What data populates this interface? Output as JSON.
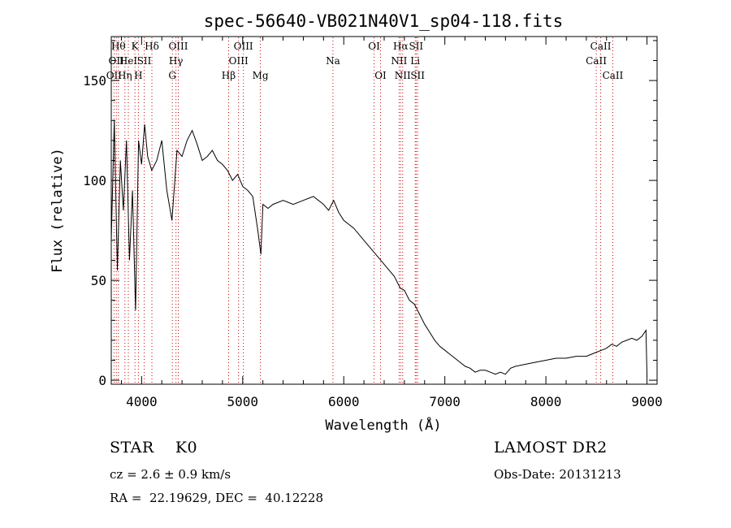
{
  "chart_data": {
    "type": "line",
    "title": "spec-56640-VB021N40V1_sp04-118.fits",
    "xlabel": "Wavelength (Å)",
    "ylabel": "Flux (relative)",
    "xlim": [
      3700,
      9100
    ],
    "ylim": [
      -2,
      172
    ],
    "xticks": [
      4000,
      5000,
      6000,
      7000,
      8000,
      9000
    ],
    "yticks": [
      0,
      50,
      100,
      150
    ],
    "grid": false,
    "line_color": "#000000",
    "marker_color": "#cc0000",
    "series": [
      {
        "x": [
          3700,
          3730,
          3760,
          3790,
          3820,
          3850,
          3880,
          3910,
          3940,
          3970,
          4000,
          4030,
          4060,
          4100,
          4150,
          4200,
          4250,
          4300,
          4350,
          4400,
          4450,
          4500,
          4550,
          4600,
          4650,
          4700,
          4750,
          4800,
          4850,
          4900,
          4950,
          5000,
          5050,
          5100,
          5150,
          5180,
          5200,
          5250,
          5300,
          5400,
          5500,
          5600,
          5700,
          5800,
          5850,
          5900,
          5950,
          6000,
          6100,
          6200,
          6300,
          6400,
          6500,
          6560,
          6600,
          6650,
          6700,
          6750,
          6800,
          6850,
          6900,
          6950,
          7000,
          7050,
          7100,
          7150,
          7200,
          7250,
          7300,
          7350,
          7400,
          7450,
          7500,
          7550,
          7600,
          7650,
          7700,
          7800,
          7900,
          8000,
          8100,
          8200,
          8300,
          8400,
          8450,
          8500,
          8550,
          8600,
          8650,
          8700,
          8750,
          8800,
          8850,
          8900,
          8950,
          8990,
          9000
        ],
        "y": [
          70,
          130,
          55,
          110,
          85,
          120,
          60,
          95,
          35,
          120,
          108,
          128,
          112,
          105,
          110,
          120,
          95,
          80,
          115,
          112,
          120,
          125,
          118,
          110,
          112,
          115,
          110,
          108,
          105,
          100,
          103,
          97,
          95,
          92,
          75,
          63,
          88,
          86,
          88,
          90,
          88,
          90,
          92,
          88,
          85,
          90,
          84,
          80,
          76,
          70,
          64,
          58,
          52,
          46,
          45,
          40,
          38,
          33,
          28,
          24,
          20,
          17,
          15,
          13,
          11,
          9,
          7,
          6,
          4,
          5,
          5,
          4,
          3,
          4,
          3,
          6,
          7,
          8,
          9,
          10,
          11,
          11,
          12,
          12,
          13,
          14,
          15,
          16,
          18,
          17,
          19,
          20,
          21,
          20,
          22,
          25,
          2
        ]
      }
    ],
    "lines": [
      {
        "wl": 3727,
        "label": "OII",
        "row": 3
      },
      {
        "wl": 3750,
        "label": "OII",
        "row": 2
      },
      {
        "wl": 3771,
        "label": "Hθ",
        "row": 1
      },
      {
        "wl": 3835,
        "label": "Hη",
        "row": 3
      },
      {
        "wl": 3869,
        "label": "HeI",
        "row": 2
      },
      {
        "wl": 3934,
        "label": "K",
        "row": 1
      },
      {
        "wl": 3968,
        "label": "H",
        "row": 3
      },
      {
        "wl": 4026,
        "label": "SII",
        "row": 2
      },
      {
        "wl": 4102,
        "label": "Hδ",
        "row": 1
      },
      {
        "wl": 4304,
        "label": "G",
        "row": 3
      },
      {
        "wl": 4340,
        "label": "Hγ",
        "row": 2
      },
      {
        "wl": 4363,
        "label": "OIII",
        "row": 1
      },
      {
        "wl": 4861,
        "label": "Hβ",
        "row": 3
      },
      {
        "wl": 4959,
        "label": "OIII",
        "row": 2
      },
      {
        "wl": 5007,
        "label": "OIII",
        "row": 1
      },
      {
        "wl": 5175,
        "label": "Mg",
        "row": 3
      },
      {
        "wl": 5893,
        "label": "Na",
        "row": 2
      },
      {
        "wl": 6300,
        "label": "OI",
        "row": 1
      },
      {
        "wl": 6364,
        "label": "OI",
        "row": 3
      },
      {
        "wl": 6548,
        "label": "NII",
        "row": 2
      },
      {
        "wl": 6563,
        "label": "Hα",
        "row": 1
      },
      {
        "wl": 6583,
        "label": "NII",
        "row": 3
      },
      {
        "wl": 6707,
        "label": "Li",
        "row": 2
      },
      {
        "wl": 6716,
        "label": "SII",
        "row": 1
      },
      {
        "wl": 6731,
        "label": "SII",
        "row": 3
      },
      {
        "wl": 8498,
        "label": "CaII",
        "row": 2
      },
      {
        "wl": 8542,
        "label": "CaII",
        "row": 1
      },
      {
        "wl": 8662,
        "label": "CaII",
        "row": 3
      }
    ]
  },
  "footer": {
    "object": "STAR    K0",
    "cz": "cz = 2.6 ± 0.9 km/s",
    "coords": "RA =  22.19629, DEC =  40.12228",
    "survey": "LAMOST DR2",
    "obs_date": "Obs-Date: 20131213"
  }
}
